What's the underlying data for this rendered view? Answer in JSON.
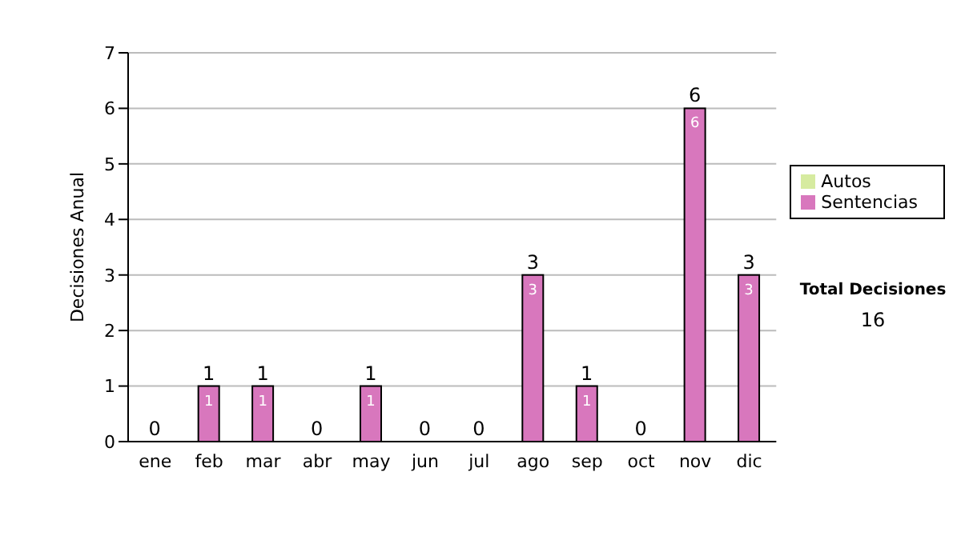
{
  "chart_data": {
    "type": "bar",
    "stacked": true,
    "ylabel": "Decisiones Anual",
    "categories": [
      "ene",
      "feb",
      "mar",
      "abr",
      "may",
      "jun",
      "jul",
      "ago",
      "sep",
      "oct",
      "nov",
      "dic"
    ],
    "series": [
      {
        "name": "Sentencias",
        "color": "#d877bd",
        "values": [
          0,
          1,
          1,
          0,
          1,
          0,
          0,
          3,
          1,
          0,
          6,
          3
        ],
        "value_labels": [
          null,
          "1",
          "1",
          null,
          "1",
          null,
          null,
          "3",
          "1",
          null,
          "6",
          "3"
        ]
      },
      {
        "name": "Autos",
        "color": "#d6eba0",
        "values": [
          0,
          0,
          0,
          0,
          0,
          0,
          0,
          0,
          0,
          0,
          0,
          0
        ]
      }
    ],
    "totals": [
      "0",
      "1",
      "1",
      "0",
      "1",
      "0",
      "0",
      "3",
      "1",
      "0",
      "6",
      "3"
    ],
    "ylim": [
      0,
      7
    ],
    "yticks": [
      0,
      1,
      2,
      3,
      4,
      5,
      6,
      7
    ],
    "grid": "y",
    "legend": "right",
    "annotations": [
      "Total Decisiones",
      "16"
    ]
  }
}
